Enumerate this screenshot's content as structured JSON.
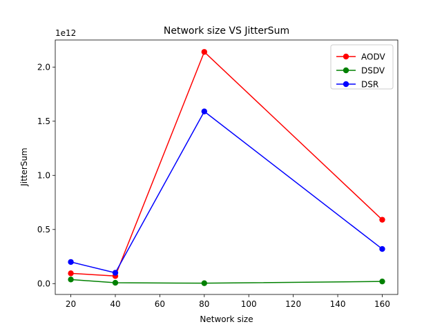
{
  "chart_data": {
    "type": "line",
    "title": "Network size VS JitterSum",
    "xlabel": "Network size",
    "ylabel": "JitterSum",
    "y_multiplier_label": "1e12",
    "xlim": [
      12.991,
      167
    ],
    "ylim": [
      -0.1,
      2.25
    ],
    "x_ticks": [
      20,
      40,
      60,
      80,
      100,
      120,
      140,
      160
    ],
    "y_ticks": [
      0.0,
      0.5,
      1.0,
      1.5,
      2.0
    ],
    "y_tick_labels": [
      "0.0",
      "0.5",
      "1.0",
      "1.5",
      "2.0"
    ],
    "grid": false,
    "legend_position": "top-right",
    "x": [
      20,
      40,
      80,
      160
    ],
    "series": [
      {
        "name": "AODV",
        "color": "#ff0000",
        "values": [
          0.095,
          0.07,
          2.14,
          0.59
        ]
      },
      {
        "name": "DSDV",
        "color": "#008000",
        "values": [
          0.038,
          0.008,
          0.004,
          0.02
        ]
      },
      {
        "name": "DSR",
        "color": "#0000ff",
        "values": [
          0.2,
          0.1,
          1.59,
          0.32
        ]
      }
    ]
  }
}
